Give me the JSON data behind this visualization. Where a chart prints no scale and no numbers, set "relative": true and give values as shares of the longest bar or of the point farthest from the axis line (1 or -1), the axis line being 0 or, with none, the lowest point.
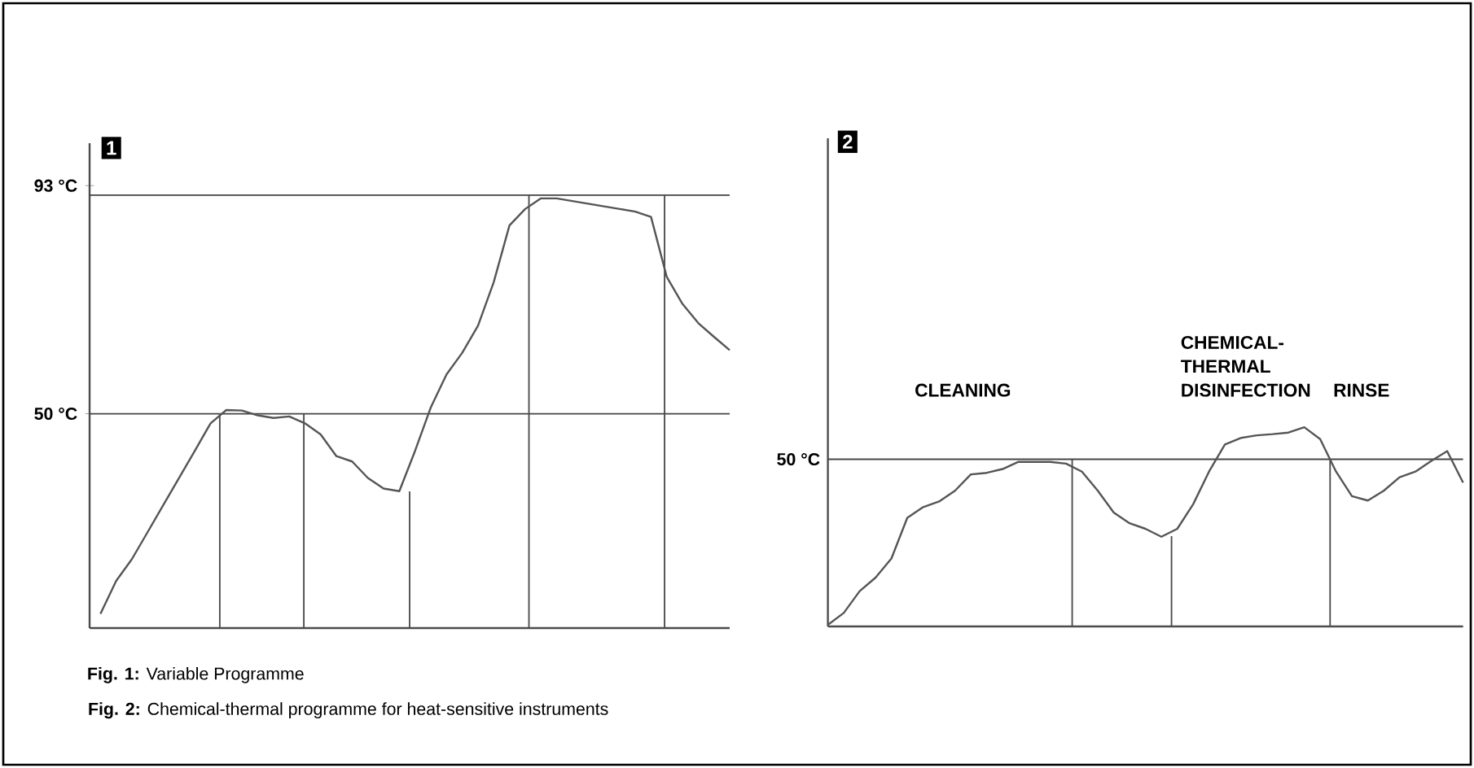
{
  "chart_data": [
    {
      "type": "line",
      "title": "1",
      "categories": [
        null,
        null,
        null,
        null,
        null,
        null,
        null,
        null,
        null,
        null,
        null,
        null,
        null,
        null,
        null,
        null,
        null,
        null,
        null,
        null,
        null,
        null,
        null,
        null,
        null,
        null,
        null,
        null,
        null,
        null,
        null,
        null,
        null,
        null,
        null,
        null,
        null,
        null,
        null,
        null,
        null
      ],
      "series": [
        {
          "color": "#555555",
          "values": [
            12.3,
            18.5,
            22.6,
            27.7,
            32.8,
            37.9,
            43.0,
            48.2,
            50.7,
            50.6,
            49.7,
            49.2,
            49.5,
            48.2,
            46.1,
            42.0,
            41.0,
            37.9,
            35.9,
            35.4,
            43.0,
            51.2,
            57.4,
            61.5,
            66.6,
            74.8,
            85.5,
            88.6,
            90.6,
            90.6,
            90.1,
            89.6,
            89.1,
            88.6,
            88.1,
            87.1,
            75.8,
            70.7,
            67.1,
            64.5,
            62.0
          ]
        }
      ],
      "ylim": [
        9.6,
        101
      ],
      "yticks": [
        {
          "value": 50,
          "label": "50 °C"
        },
        {
          "value": 93,
          "label": "93 °C"
        }
      ],
      "tick_labels": "y",
      "ref_lines": [
        {
          "axis": "y",
          "value": 50,
          "color": "#444444"
        },
        {
          "axis": "y",
          "value": 91.2,
          "color": "#444444"
        }
      ],
      "annotations": [
        "**Fig. 1:** Variable Programme"
      ]
    },
    {
      "type": "line",
      "title": "2",
      "categories": [
        null,
        null,
        null,
        null,
        null,
        null,
        null,
        null,
        null,
        null,
        null,
        null,
        null,
        null,
        null,
        null,
        null,
        null,
        null,
        null,
        null,
        null,
        null,
        null,
        null,
        null,
        null,
        null,
        null,
        null,
        null,
        null,
        null,
        null,
        null,
        null,
        null,
        null,
        null,
        null,
        null
      ],
      "series": [
        {
          "color": "#555555",
          "values": [
            0.008,
            0.068,
            0.177,
            0.245,
            0.341,
            0.545,
            0.599,
            0.627,
            0.681,
            0.763,
            0.771,
            0.79,
            0.826,
            0.826,
            0.826,
            0.817,
            0.777,
            0.681,
            0.572,
            0.518,
            0.49,
            0.45,
            0.49,
            0.613,
            0.777,
            0.913,
            0.946,
            0.959,
            0.965,
            0.973,
            1,
            0.94,
            0.777,
            0.654,
            0.632,
            0.681,
            0.749,
            0.777,
            0.831,
            0.88,
            0.722
          ]
        }
      ],
      "relative": true,
      "tick_labels": false,
      "ref_lines": [
        {
          "axis": "y",
          "value": 0.839,
          "label": "50 °C",
          "color": "#444444"
        }
      ],
      "annotations": [
        "CLEANING",
        "CHEMICAL-THERMAL DISINFECTION",
        "RINSE",
        "**Fig. 2:** Chemical-thermal programme for heat-sensitive instruments"
      ]
    }
  ]
}
